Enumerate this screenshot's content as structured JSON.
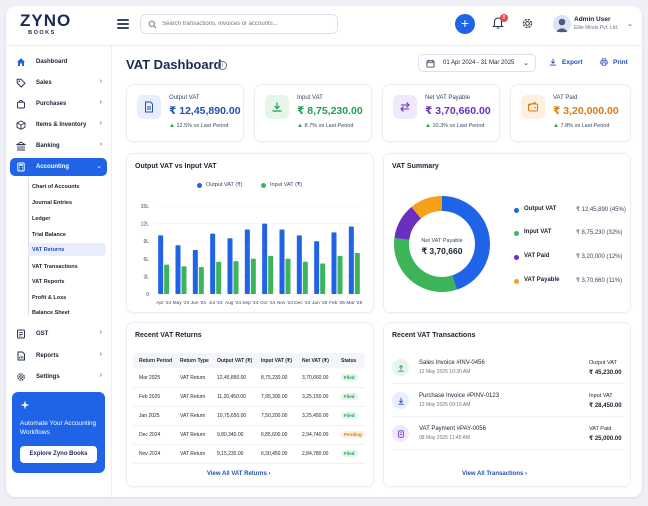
{
  "brand": {
    "name": "ZYNO",
    "sub": "BOOKS",
    "accent": "#1f63e6"
  },
  "header": {
    "search_placeholder": "Search transactions, invoices or accounts...",
    "notification_count": "8",
    "user_name": "Admin User",
    "user_company": "Elite Minds Pvt. Ltd."
  },
  "sidebar": {
    "items": [
      {
        "label": "Dashboard",
        "icon": "home-icon"
      },
      {
        "label": "Sales",
        "icon": "tag-icon"
      },
      {
        "label": "Purchases",
        "icon": "bag-icon"
      },
      {
        "label": "Items & Inventory",
        "icon": "box-icon"
      },
      {
        "label": "Banking",
        "icon": "bank-icon"
      },
      {
        "label": "Accounting",
        "icon": "calculator-icon"
      },
      {
        "label": "GST",
        "icon": "gst-icon"
      },
      {
        "label": "Reports",
        "icon": "report-icon"
      },
      {
        "label": "Settings",
        "icon": "gear-icon"
      }
    ],
    "sub_items": [
      "Chart of Accounts",
      "Journal Entries",
      "Ledger",
      "Trial Balance",
      "VAT Returns",
      "VAT Transactions",
      "VAT Reports",
      "Profit & Loss",
      "Balance Sheet"
    ],
    "promo_title": "Automate Your Accounting Workflows",
    "promo_button": "Explore Zyno Books"
  },
  "page": {
    "title": "VAT Dashboard",
    "date_range": "01 Apr 2024 - 31 Mar 2025",
    "export_label": "Export",
    "print_label": "Print"
  },
  "stats": [
    {
      "label": "Output VAT",
      "value": "₹ 12,45,890.00",
      "change": "12.5%",
      "suffix": "vs Last Period",
      "color": "#1f4fb8"
    },
    {
      "label": "Input VAT",
      "value": "₹ 8,75,230.00",
      "change": "8.7%",
      "suffix": "vs Last Period",
      "color": "#1f9d55"
    },
    {
      "label": "Net VAT Payable",
      "value": "₹ 3,70,660.00",
      "change": "10.3%",
      "suffix": "vs Last Period",
      "color": "#6b2fc0"
    },
    {
      "label": "VAT Paid",
      "value": "₹ 3,20,000.00",
      "change": "7.8%",
      "suffix": "vs Last Period",
      "color": "#e07a10"
    }
  ],
  "chart_section": {
    "title": "Output VAT vs Input VAT",
    "legend_output": "Output VAT (₹)",
    "legend_input": "Input VAT (₹)"
  },
  "chart_data": {
    "type": "bar",
    "categories": [
      "Apr '24",
      "May '24",
      "Jun '24",
      "Jul '24",
      "Aug '24",
      "Sep '24",
      "Oct '24",
      "Nov '24",
      "Dec '24",
      "Jan '25",
      "Feb '25",
      "Mar '25"
    ],
    "series": [
      {
        "name": "Output VAT (₹)",
        "color": "#1f63e6",
        "values": [
          10.0,
          8.3,
          7.5,
          10.3,
          9.5,
          11.0,
          12.0,
          11.0,
          10.0,
          9.0,
          10.5,
          11.5
        ]
      },
      {
        "name": "Input VAT (₹)",
        "color": "#3cb55a",
        "values": [
          5.0,
          4.7,
          4.6,
          5.5,
          5.6,
          6.0,
          6.5,
          6.0,
          5.5,
          5.2,
          6.5,
          7.0
        ]
      }
    ],
    "y_ticks": [
      "15L",
      "12L",
      "9L",
      "6L",
      "3L",
      "0"
    ],
    "ylim": [
      0,
      15
    ]
  },
  "summary": {
    "title": "VAT Summary",
    "center_label": "Net VAT Payable",
    "center_value": "₹ 3,70,660",
    "items": [
      {
        "label": "Output VAT",
        "value": "₹ 12,45,890 (45%)",
        "color": "#1f63e6",
        "percent": 45
      },
      {
        "label": "Input VAT",
        "value": "₹ 8,75,230 (32%)",
        "color": "#3cb55a",
        "percent": 32
      },
      {
        "label": "VAT Paid",
        "value": "₹ 3,20,000 (12%)",
        "color": "#6b2fc0",
        "percent": 12
      },
      {
        "label": "VAT Payable",
        "value": "₹ 3,70,660 (11%)",
        "color": "#f5a01a",
        "percent": 11
      }
    ]
  },
  "returns": {
    "title": "Recent VAT Returns",
    "columns": [
      "Return Period",
      "Return Type",
      "Output VAT (₹)",
      "Input VAT (₹)",
      "Net VAT (₹)",
      "Status"
    ],
    "rows": [
      [
        "Mar 2025",
        "VAT Return",
        "12,45,890.00",
        "8,75,230.00",
        "3,70,660.00",
        "Filed"
      ],
      [
        "Feb 2025",
        "VAT Return",
        "11,20,450.00",
        "7,95,300.00",
        "3,25,150.00",
        "Filed"
      ],
      [
        "Jan 2025",
        "VAT Return",
        "10,75,650.00",
        "7,50,200.00",
        "3,25,450.00",
        "Filed"
      ],
      [
        "Dec 2024",
        "VAT Return",
        "9,80,340.00",
        "6,85,600.00",
        "2,94,740.00",
        "Pending"
      ],
      [
        "Nov 2024",
        "VAT Return",
        "9,15,230.00",
        "6,30,450.00",
        "2,84,780.00",
        "Filed"
      ]
    ],
    "link": "View All VAT Returns"
  },
  "transactions": {
    "title": "Recent VAT Transactions",
    "items": [
      {
        "title": "Sales Invoice #INV-0456",
        "date": "12 May 2025 10:30 AM",
        "type": "Output VAT",
        "amount": "₹ 45,230.00",
        "icon": "upload-icon",
        "bg": "#e5f5ea",
        "fg": "#1f9d55"
      },
      {
        "title": "Purchase Invoice #PINV-0123",
        "date": "12 May 2025 09:15 AM",
        "type": "Input VAT",
        "amount": "₹ 28,450.00",
        "icon": "download-icon",
        "bg": "#e8eefc",
        "fg": "#1f4fb8"
      },
      {
        "title": "VAT Payment #PAY-0056",
        "date": "08 May 2025 11:45 AM",
        "type": "VAT Paid",
        "amount": "₹ 25,000.00",
        "icon": "receipt-icon",
        "bg": "#f0e8fb",
        "fg": "#6b2fc0"
      }
    ],
    "link": "View All Transactions"
  }
}
